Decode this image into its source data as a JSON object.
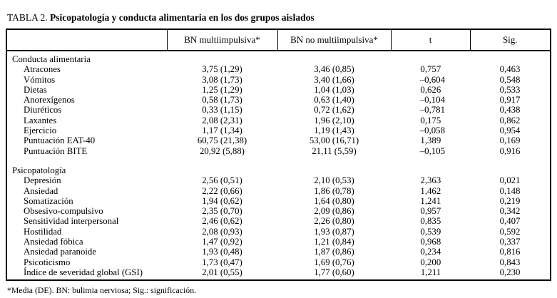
{
  "title": {
    "label": "TABLA 2.",
    "text": "Psicopatología y conducta alimentaria en los dos grupos aislados"
  },
  "table": {
    "columns": [
      "",
      "BN multiimpulsiva*",
      "BN no multiimpulsiva*",
      "t",
      "Sig."
    ],
    "sections": [
      {
        "title": "Conducta alimentaria",
        "rows": [
          {
            "label": "Atracones",
            "values": [
              "3,75 (1,29)",
              "3,46 (0,85)",
              "0,757",
              "0,463"
            ]
          },
          {
            "label": "Vómitos",
            "values": [
              "3,08 (1,73)",
              "3,40 (1,66)",
              "–0,604",
              "0,548"
            ]
          },
          {
            "label": "Dietas",
            "values": [
              "1,25 (1,29)",
              "1,04 (1,03)",
              "0,626",
              "0,533"
            ]
          },
          {
            "label": "Anorexígenos",
            "values": [
              "0,58 (1,73)",
              "0,63 (1,40)",
              "–0,104",
              "0,917"
            ]
          },
          {
            "label": "Diuréticos",
            "values": [
              "0,33 (1,15)",
              "0,72 (1,62)",
              "–0,781",
              "0,438"
            ]
          },
          {
            "label": "Laxantes",
            "values": [
              "2,08 (2,31)",
              "1,96 (2,10)",
              "0,175",
              "0,862"
            ]
          },
          {
            "label": "Ejercicio",
            "values": [
              "1,17 (1,34)",
              "1,19 (1,43)",
              "–0,058",
              "0,954"
            ]
          },
          {
            "label": "Puntuación EAT-40",
            "values": [
              "60,75 (21,38)",
              "53,00 (16,71)",
              "1,389",
              "0,169"
            ]
          },
          {
            "label": "Puntuación BITE",
            "values": [
              "20,92 (5,88)",
              "21,11 (5,59)",
              "–0,105",
              "0,916"
            ]
          }
        ]
      },
      {
        "title": "Psicopatología",
        "rows": [
          {
            "label": "Depresión",
            "values": [
              "2,56 (0,51)",
              "2,10 (0,53)",
              "2,363",
              "0,021"
            ]
          },
          {
            "label": "Ansiedad",
            "values": [
              "2,22 (0,66)",
              "1,86 (0,78)",
              "1,462",
              "0,148"
            ]
          },
          {
            "label": "Somatización",
            "values": [
              "1,94 (0,62)",
              "1,64 (0,80)",
              "1,241",
              "0,219"
            ]
          },
          {
            "label": "Obsesivo-compulsivo",
            "values": [
              "2,35 (0,70)",
              "2,09 (0,86)",
              "0,957",
              "0,342"
            ]
          },
          {
            "label": "Sensitividad interpersonal",
            "values": [
              "2,46 (0,62)",
              "2,26 (0,80)",
              "0,835",
              "0,407"
            ]
          },
          {
            "label": "Hostilidad",
            "values": [
              "2,08 (0,93)",
              "1,93 (0,87)",
              "0,539",
              "0,592"
            ]
          },
          {
            "label": "Ansiedad fóbica",
            "values": [
              "1,47 (0,92)",
              "1,21 (0,84)",
              "0,968",
              "0,337"
            ]
          },
          {
            "label": "Ansiedad paranoide",
            "values": [
              "1,93 (0,48)",
              "1,87 (0,86)",
              "0,234",
              "0,816"
            ]
          },
          {
            "label": "Psicoticismo",
            "values": [
              "1,73 (0,47)",
              "1,69 (0,76)",
              "0,200",
              "0,843"
            ]
          },
          {
            "label": "Índice de severidad global (GSI)",
            "values": [
              "2,01 (0,55)",
              "1,77 (0,60)",
              "1,211",
              "0,230"
            ]
          }
        ]
      }
    ]
  },
  "footnote": "*Media (DE). BN: bulimia nerviosa; Sig.: significación.",
  "colors": {
    "text": "#000000",
    "background": "#ffffff",
    "border": "#000000"
  }
}
